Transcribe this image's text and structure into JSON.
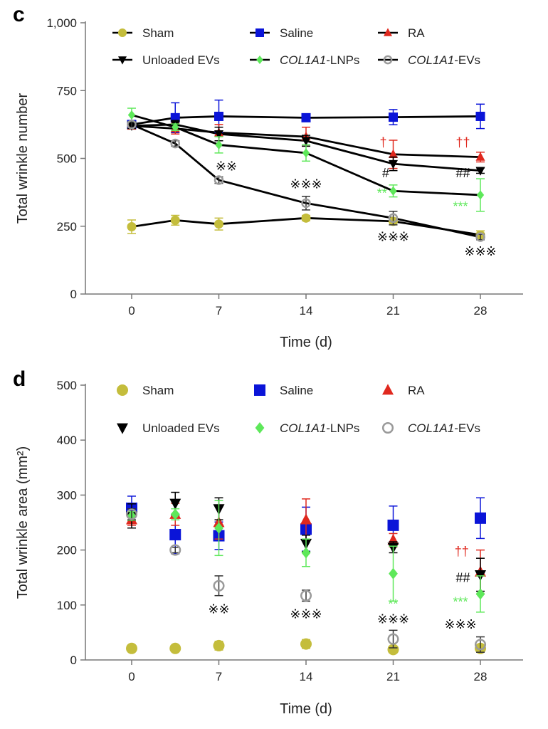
{
  "chart_data": [
    {
      "panel": "c",
      "type": "line",
      "xlabel": "Time (d)",
      "ylabel": "Total wrinkle number",
      "xlim": [
        -3,
        31
      ],
      "ylim": [
        0,
        1000
      ],
      "xticks": [
        0,
        7,
        14,
        21,
        28
      ],
      "yticks": [
        0,
        250,
        500,
        750,
        1000
      ],
      "ytick_labels": [
        "0",
        "250",
        "500",
        "750",
        "1,000"
      ],
      "x": [
        0,
        3.5,
        7,
        14,
        21,
        28
      ],
      "lines": true,
      "legend_position": "top",
      "series": [
        {
          "name": "Sham",
          "italic_prefix": "",
          "suffix": "",
          "marker": "circle",
          "color": "#c4bd3c",
          "values": [
            248,
            272,
            258,
            280,
            268,
            218
          ],
          "err": [
            25,
            18,
            22,
            10,
            12,
            15
          ]
        },
        {
          "name": "Saline",
          "italic_prefix": "",
          "suffix": "",
          "marker": "square",
          "color": "#0a14d8",
          "values": [
            625,
            650,
            655,
            650,
            652,
            655
          ],
          "err": [
            15,
            55,
            60,
            12,
            28,
            45
          ]
        },
        {
          "name": "RA",
          "italic_prefix": "",
          "suffix": "",
          "marker": "triangle-up",
          "color": "#e0281e",
          "values": [
            620,
            610,
            595,
            580,
            515,
            505
          ],
          "err": [
            12,
            20,
            30,
            35,
            52,
            18
          ]
        },
        {
          "name": "Unloaded EVs",
          "italic_prefix": "",
          "suffix": "",
          "marker": "triangle-down",
          "color": "#000000",
          "values": [
            620,
            625,
            590,
            565,
            480,
            455
          ],
          "err": [
            10,
            15,
            25,
            20,
            25,
            10
          ]
        },
        {
          "name": "COL1A1-LNPs",
          "italic_prefix": "COL1A1",
          "suffix": "-LNPs",
          "marker": "diamond",
          "color": "#5ee85a",
          "values": [
            660,
            615,
            550,
            520,
            380,
            365
          ],
          "err": [
            25,
            12,
            30,
            30,
            22,
            60
          ]
        },
        {
          "name": "COL1A1-EVs",
          "italic_prefix": "COL1A1",
          "suffix": "-EVs",
          "marker": "open-circle",
          "color": "#9a9a9a",
          "values": [
            625,
            555,
            420,
            335,
            280,
            210
          ],
          "err": [
            10,
            10,
            12,
            25,
            25,
            10
          ]
        }
      ],
      "annotations": [
        {
          "text": "※※",
          "x": 7.6,
          "y": 455,
          "color": "#000000"
        },
        {
          "text": "※※※",
          "x": 14,
          "y": 390,
          "color": "#000000"
        },
        {
          "text": "†",
          "x": 20.2,
          "y": 543,
          "color": "#e0281e"
        },
        {
          "text": "††",
          "x": 26.6,
          "y": 543,
          "color": "#e0281e"
        },
        {
          "text": "#",
          "x": 20.4,
          "y": 430,
          "color": "#000000"
        },
        {
          "text": "##",
          "x": 26.6,
          "y": 430,
          "color": "#000000"
        },
        {
          "text": "**",
          "x": 20.1,
          "y": 355,
          "color": "#5ee85a"
        },
        {
          "text": "***",
          "x": 26.4,
          "y": 307,
          "color": "#5ee85a"
        },
        {
          "text": "※※※",
          "x": 21,
          "y": 195,
          "color": "#000000"
        },
        {
          "text": "※※※",
          "x": 28,
          "y": 142,
          "color": "#000000"
        }
      ]
    },
    {
      "panel": "d",
      "type": "scatter",
      "xlabel": "Time (d)",
      "ylabel": "Total wrinkle area (mm²)",
      "xlim": [
        -3,
        31
      ],
      "ylim": [
        0,
        500
      ],
      "xticks": [
        0,
        7,
        14,
        21,
        28
      ],
      "yticks": [
        0,
        100,
        200,
        300,
        400,
        500
      ],
      "ytick_labels": [
        "0",
        "100",
        "200",
        "300",
        "400",
        "500"
      ],
      "x": [
        0,
        3.5,
        7,
        14,
        21,
        28
      ],
      "lines": false,
      "legend_position": "top",
      "series": [
        {
          "name": "Sham",
          "italic_prefix": "",
          "suffix": "",
          "marker": "circle",
          "color": "#c4bd3c",
          "values": [
            21,
            21,
            26,
            29,
            19,
            21
          ],
          "err": [
            0,
            0,
            8,
            8,
            0,
            0
          ]
        },
        {
          "name": "Saline",
          "italic_prefix": "",
          "suffix": "",
          "marker": "square",
          "color": "#0a14d8",
          "values": [
            276,
            228,
            226,
            238,
            245,
            258
          ],
          "err": [
            22,
            35,
            25,
            40,
            35,
            37
          ]
        },
        {
          "name": "RA",
          "italic_prefix": "",
          "suffix": "",
          "marker": "triangle-up",
          "color": "#e0281e",
          "values": [
            255,
            265,
            250,
            255,
            218,
            160
          ],
          "err": [
            10,
            20,
            30,
            38,
            12,
            40
          ]
        },
        {
          "name": "Unloaded EVs",
          "italic_prefix": "",
          "suffix": "",
          "marker": "triangle-down",
          "color": "#000000",
          "values": [
            262,
            285,
            275,
            212,
            205,
            155
          ],
          "err": [
            22,
            20,
            20,
            15,
            10,
            30
          ]
        },
        {
          "name": "COL1A1-LNPs",
          "italic_prefix": "COL1A1",
          "suffix": "-LNPs",
          "marker": "diamond",
          "color": "#5ee85a",
          "values": [
            262,
            265,
            240,
            195,
            157,
            120
          ],
          "err": [
            8,
            10,
            50,
            25,
            50,
            33
          ]
        },
        {
          "name": "COL1A1-EVs",
          "italic_prefix": "COL1A1",
          "suffix": "-EVs",
          "marker": "open-circle",
          "color": "#9a9a9a",
          "values": [
            265,
            200,
            135,
            117,
            38,
            28
          ],
          "err": [
            10,
            5,
            18,
            10,
            16,
            14
          ]
        }
      ],
      "annotations": [
        {
          "text": "※※",
          "x": 7,
          "y": 85,
          "color": "#000000"
        },
        {
          "text": "※※※",
          "x": 14,
          "y": 76,
          "color": "#000000"
        },
        {
          "text": "**",
          "x": 21,
          "y": 94,
          "color": "#5ee85a"
        },
        {
          "text": "※※※",
          "x": 21,
          "y": 67,
          "color": "#000000"
        },
        {
          "text": "††",
          "x": 26.5,
          "y": 190,
          "color": "#e0281e"
        },
        {
          "text": "##",
          "x": 26.6,
          "y": 142,
          "color": "#000000"
        },
        {
          "text": "***",
          "x": 26.4,
          "y": 98,
          "color": "#5ee85a"
        },
        {
          "text": "※※※",
          "x": 26.4,
          "y": 57,
          "color": "#000000"
        }
      ]
    }
  ]
}
